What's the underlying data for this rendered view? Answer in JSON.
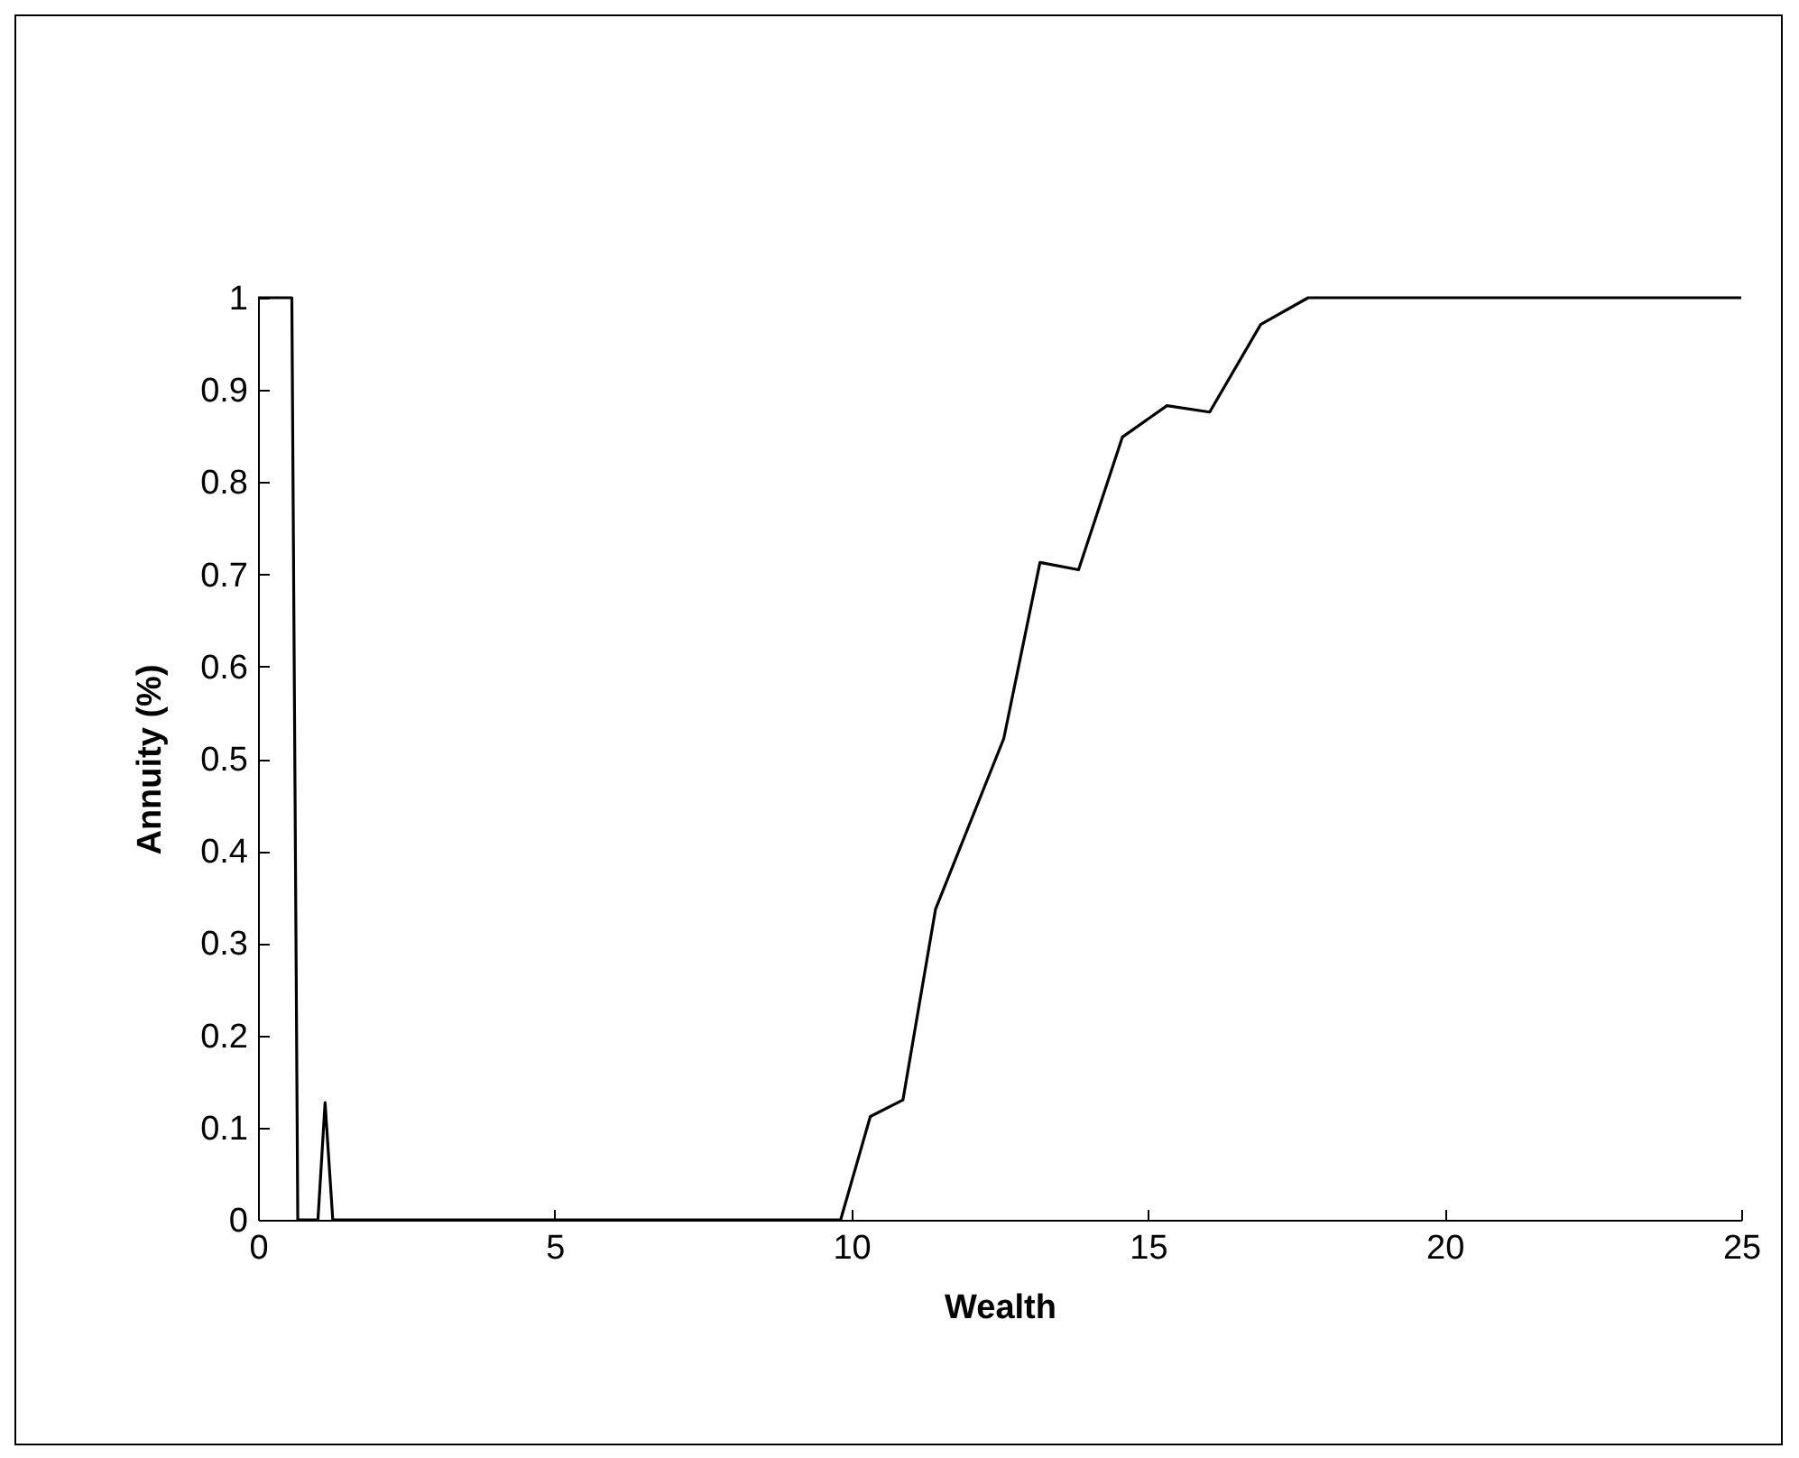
{
  "chart_data": {
    "type": "line",
    "xlabel": "Wealth",
    "ylabel": "Annuity (%)",
    "series": [
      {
        "color": "#000000",
        "x": [
          0,
          0.57,
          0.67,
          1.01,
          1.13,
          1.26,
          9.82,
          10.32,
          10.87,
          11.42,
          12.57,
          13.18,
          13.83,
          14.57,
          15.32,
          16.04,
          16.9,
          17.7,
          25
        ],
        "values": [
          1,
          1,
          0,
          0,
          0.127,
          0,
          0,
          0.112,
          0.13,
          0.337,
          0.522,
          0.713,
          0.705,
          0.849,
          0.883,
          0.876,
          0.971,
          1,
          1
        ]
      }
    ],
    "xlim": [
      0,
      25
    ],
    "xticks": [
      0,
      5,
      10,
      15,
      20,
      25
    ],
    "ylim": [
      0,
      1
    ],
    "yticks": [
      0,
      0.1,
      0.2,
      0.3,
      0.4,
      0.5,
      0.6,
      0.7,
      0.8,
      0.9,
      1
    ],
    "grid": false,
    "legend": false,
    "marker": "none",
    "line_style": "solid"
  }
}
